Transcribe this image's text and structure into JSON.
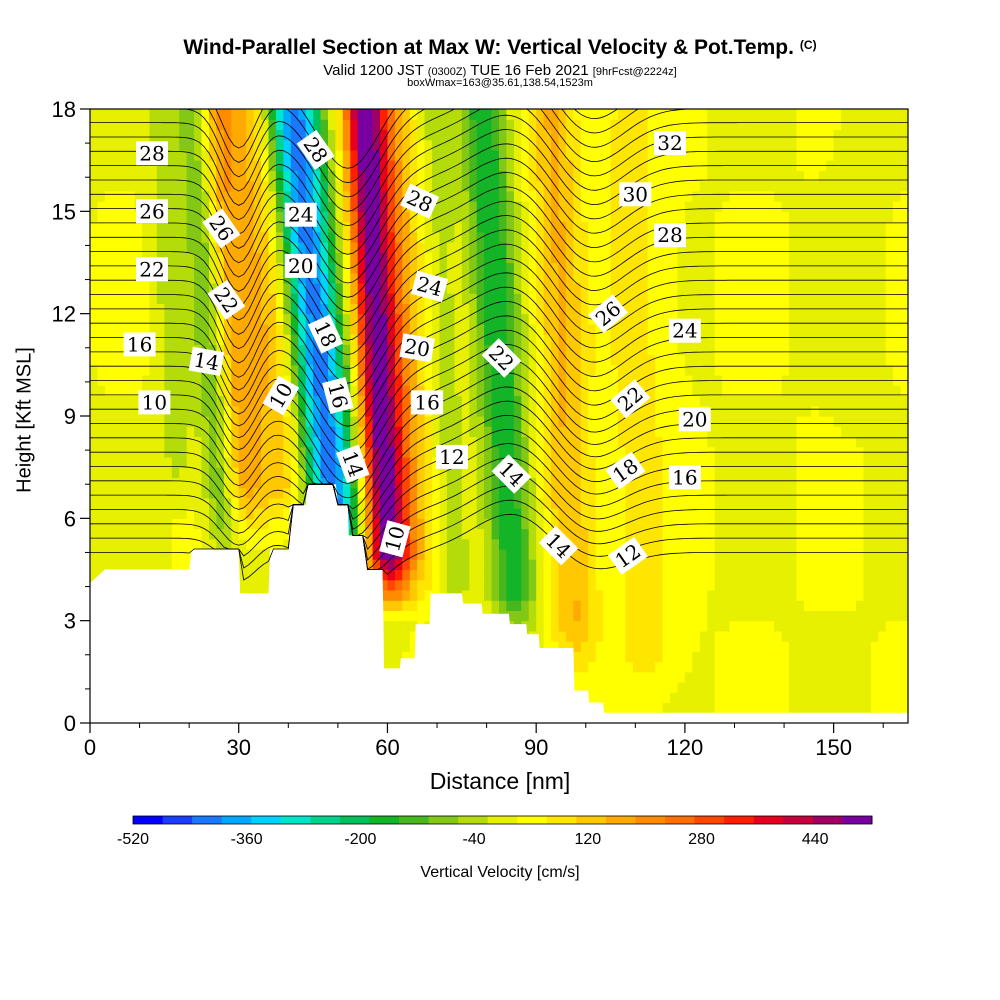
{
  "header": {
    "title": "Wind-Parallel Section at Max W: Vertical Velocity & Pot.Temp.",
    "copyright": "(C)",
    "valid_prefix": "Valid 1200 JST",
    "valid_utc": "(0300Z)",
    "valid_date": "TUE 16 Feb 2021",
    "forecast": "[9hrFcst@2224z]",
    "boxwmax": "boxWmax=163@35.61,138.54,1523m"
  },
  "colorbar": {
    "label": "Vertical Velocity [cm/s]",
    "tick_labels": [
      "-520",
      "-360",
      "-200",
      "-40",
      "120",
      "280",
      "440"
    ],
    "tick_values": [
      -520,
      -360,
      -200,
      -40,
      120,
      280,
      440
    ],
    "colors": [
      "#0000ff",
      "#1a3cff",
      "#1a78ff",
      "#00a8ff",
      "#00d2ff",
      "#00e6c8",
      "#00d48c",
      "#00c05a",
      "#14b428",
      "#46b81e",
      "#82c814",
      "#b4dc0a",
      "#e6f000",
      "#ffff00",
      "#ffe600",
      "#ffc800",
      "#ffaa00",
      "#ff8c00",
      "#ff6e00",
      "#ff4600",
      "#ff1e00",
      "#e6001e",
      "#c8003c",
      "#a00064",
      "#7800a0"
    ]
  },
  "chart_data": {
    "type": "heatmap",
    "title": "Wind-Parallel Section at Max W: Vertical Velocity & Pot.Temp.",
    "xlabel": "Distance [nm]",
    "ylabel": "Height [Kft MSL]",
    "xlim": [
      0,
      165
    ],
    "ylim": [
      0,
      18
    ],
    "x_ticks": [
      0,
      30,
      60,
      90,
      120,
      150
    ],
    "y_ticks": [
      0,
      3,
      6,
      9,
      12,
      15,
      18
    ],
    "fill_variable": "Vertical Velocity [cm/s]",
    "contour_variable": "Pot.Temp.",
    "velocity_features": [
      {
        "center_x": 50,
        "width": 7,
        "tilt": 0.7,
        "bottom": 5,
        "value": -450
      },
      {
        "center_x": 60,
        "width": 5,
        "tilt": 0.35,
        "bottom": 4,
        "value": 400
      },
      {
        "center_x": 64,
        "width": 7,
        "tilt": 0.35,
        "bottom": 4,
        "value": 180
      },
      {
        "center_x": 40,
        "width": 7,
        "tilt": 0.6,
        "bottom": 6,
        "value": 130
      },
      {
        "center_x": 32,
        "width": 5,
        "tilt": 0.5,
        "bottom": 6,
        "value": 140
      },
      {
        "center_x": 27,
        "width": 4,
        "tilt": 0.5,
        "bottom": 5,
        "value": -120
      },
      {
        "center_x": 18,
        "width": 4,
        "tilt": 0.3,
        "bottom": 7,
        "value": -70
      },
      {
        "center_x": 86,
        "width": 6,
        "tilt": 0.45,
        "bottom": 3,
        "value": -200
      },
      {
        "center_x": 74,
        "width": 4,
        "tilt": 0.3,
        "bottom": 3,
        "value": -60
      },
      {
        "center_x": 98,
        "width": 6,
        "tilt": 0.3,
        "bottom": 2,
        "value": 130
      },
      {
        "center_x": 112,
        "width": 8,
        "tilt": 0.2,
        "bottom": 1,
        "value": 60
      },
      {
        "center_x": 155,
        "width": 6,
        "tilt": 0,
        "bottom": 9,
        "value": -15
      }
    ],
    "terrain": [
      [
        0,
        4.1
      ],
      [
        3,
        4.5
      ],
      [
        20,
        4.5
      ],
      [
        20.5,
        5.1
      ],
      [
        30,
        5.1
      ],
      [
        30.3,
        3.8
      ],
      [
        36,
        3.8
      ],
      [
        36.3,
        5.1
      ],
      [
        40,
        5.1
      ],
      [
        40.3,
        6.4
      ],
      [
        43.5,
        6.4
      ],
      [
        43.8,
        7.0
      ],
      [
        49.6,
        7.0
      ],
      [
        50,
        6.4
      ],
      [
        52,
        6.4
      ],
      [
        52.2,
        5.5
      ],
      [
        55.5,
        5.5
      ],
      [
        55.8,
        4.5
      ],
      [
        59,
        4.5
      ],
      [
        59.2,
        2.9
      ],
      [
        59.3,
        1.6
      ],
      [
        62.5,
        1.6
      ],
      [
        62.7,
        1.9
      ],
      [
        65.5,
        1.9
      ],
      [
        65.7,
        2.9
      ],
      [
        68.5,
        2.9
      ],
      [
        68.7,
        3.8
      ],
      [
        75,
        3.8
      ],
      [
        75.3,
        3.5
      ],
      [
        79,
        3.5
      ],
      [
        79.2,
        3.2
      ],
      [
        84.5,
        3.2
      ],
      [
        84.7,
        2.9
      ],
      [
        88,
        2.9
      ],
      [
        88.2,
        2.6
      ],
      [
        90.5,
        2.6
      ],
      [
        90.7,
        2.2
      ],
      [
        97.5,
        2.2
      ],
      [
        97.7,
        0.95
      ],
      [
        100.5,
        0.95
      ],
      [
        100.7,
        0.6
      ],
      [
        103.5,
        0.6
      ],
      [
        103.7,
        0.3
      ],
      [
        165,
        0.3
      ]
    ],
    "theta_contours": {
      "levels": [
        10,
        12,
        14,
        16,
        18,
        20,
        22,
        24,
        26,
        28,
        30,
        32
      ],
      "labels": [
        {
          "text": "28",
          "x": 12.5,
          "y": 16.7,
          "angle": 0
        },
        {
          "text": "26",
          "x": 12.5,
          "y": 15.0,
          "angle": 0
        },
        {
          "text": "22",
          "x": 12.5,
          "y": 13.3,
          "angle": 0
        },
        {
          "text": "16",
          "x": 10,
          "y": 11.1,
          "angle": 0
        },
        {
          "text": "10",
          "x": 13,
          "y": 9.4,
          "angle": 0
        },
        {
          "text": "26",
          "x": 26.5,
          "y": 14.5,
          "angle": 55
        },
        {
          "text": "22",
          "x": 27.5,
          "y": 12.4,
          "angle": 55
        },
        {
          "text": "14",
          "x": 23.5,
          "y": 10.6,
          "angle": 10
        },
        {
          "text": "28",
          "x": 45.5,
          "y": 16.8,
          "angle": 55
        },
        {
          "text": "24",
          "x": 42.5,
          "y": 14.9,
          "angle": 0
        },
        {
          "text": "20",
          "x": 42.5,
          "y": 13.4,
          "angle": 0
        },
        {
          "text": "18",
          "x": 47.5,
          "y": 11.4,
          "angle": 65
        },
        {
          "text": "16",
          "x": 50,
          "y": 9.6,
          "angle": 75
        },
        {
          "text": "14",
          "x": 53,
          "y": 7.6,
          "angle": 70
        },
        {
          "text": "10",
          "x": 61.5,
          "y": 5.4,
          "angle": -75
        },
        {
          "text": "10",
          "x": 38.5,
          "y": 9.6,
          "angle": -60
        },
        {
          "text": "28",
          "x": 66.5,
          "y": 15.3,
          "angle": 25
        },
        {
          "text": "24",
          "x": 68.5,
          "y": 12.8,
          "angle": 15
        },
        {
          "text": "20",
          "x": 66,
          "y": 11.0,
          "angle": 10
        },
        {
          "text": "16",
          "x": 68,
          "y": 9.4,
          "angle": 0
        },
        {
          "text": "12",
          "x": 73,
          "y": 7.8,
          "angle": 0
        },
        {
          "text": "22",
          "x": 83,
          "y": 10.7,
          "angle": 45
        },
        {
          "text": "14",
          "x": 85,
          "y": 7.3,
          "angle": 45
        },
        {
          "text": "14",
          "x": 94.5,
          "y": 5.2,
          "angle": 45
        },
        {
          "text": "32",
          "x": 117,
          "y": 17.0,
          "angle": 0
        },
        {
          "text": "30",
          "x": 110,
          "y": 15.5,
          "angle": 0
        },
        {
          "text": "28",
          "x": 117,
          "y": 14.3,
          "angle": 0
        },
        {
          "text": "26",
          "x": 104.5,
          "y": 12.0,
          "angle": -40
        },
        {
          "text": "24",
          "x": 120,
          "y": 11.5,
          "angle": 0
        },
        {
          "text": "22",
          "x": 109,
          "y": 9.5,
          "angle": -40
        },
        {
          "text": "20",
          "x": 122,
          "y": 8.9,
          "angle": 0
        },
        {
          "text": "18",
          "x": 108,
          "y": 7.4,
          "angle": -35
        },
        {
          "text": "16",
          "x": 120,
          "y": 7.2,
          "angle": 0
        },
        {
          "text": "12",
          "x": 108.5,
          "y": 4.9,
          "angle": -35
        }
      ]
    }
  }
}
